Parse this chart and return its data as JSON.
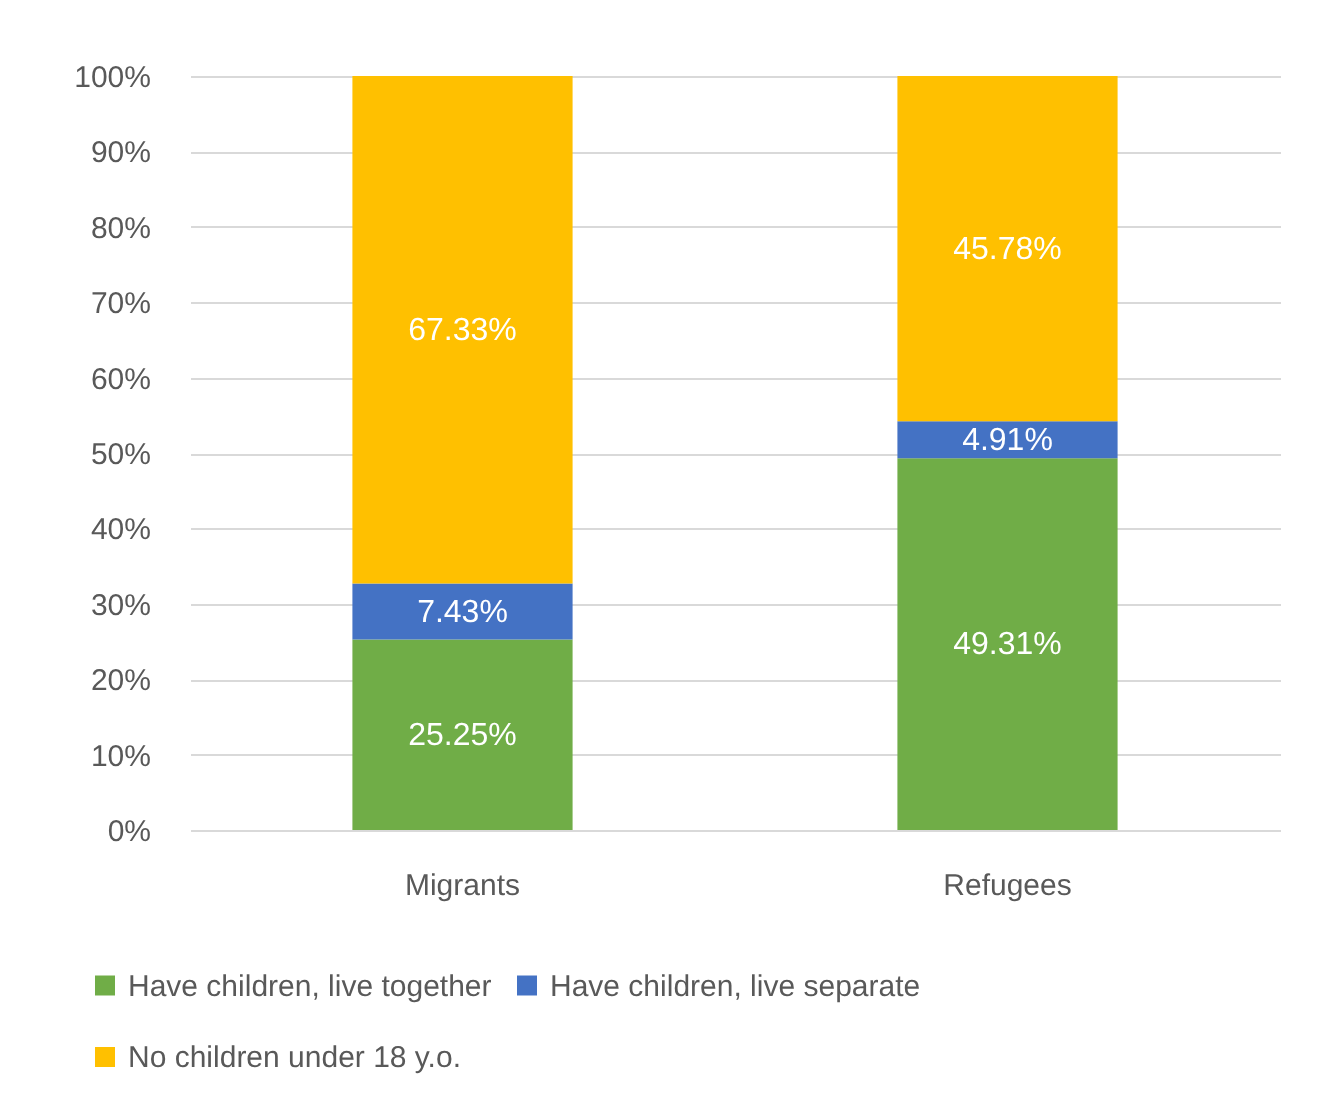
{
  "chart_data": {
    "type": "bar",
    "stacked": true,
    "categories": [
      "Migrants",
      "Refugees"
    ],
    "series": [
      {
        "name": "Have children, live together",
        "color": "#70ad47",
        "values": [
          25.25,
          49.31
        ],
        "value_labels": [
          "25.25%",
          "49.31%"
        ]
      },
      {
        "name": "Have children, live separate",
        "color": "#4472c4",
        "values": [
          7.43,
          4.91
        ],
        "value_labels": [
          "7.43%",
          "4.91%"
        ]
      },
      {
        "name": "No children under 18 y.o.",
        "color": "#ffc000",
        "values": [
          67.33,
          45.78
        ],
        "value_labels": [
          "67.33%",
          "45.78%"
        ]
      }
    ],
    "ylim": [
      0,
      100
    ],
    "yticks": [
      {
        "value": 0,
        "label": "0%"
      },
      {
        "value": 10,
        "label": "10%"
      },
      {
        "value": 20,
        "label": "20%"
      },
      {
        "value": 30,
        "label": "30%"
      },
      {
        "value": 40,
        "label": "40%"
      },
      {
        "value": 50,
        "label": "50%"
      },
      {
        "value": 60,
        "label": "60%"
      },
      {
        "value": 70,
        "label": "70%"
      },
      {
        "value": 80,
        "label": "80%"
      },
      {
        "value": 90,
        "label": "90%"
      },
      {
        "value": 100,
        "label": "100%"
      }
    ],
    "grid": "y",
    "legend": "bottom"
  }
}
